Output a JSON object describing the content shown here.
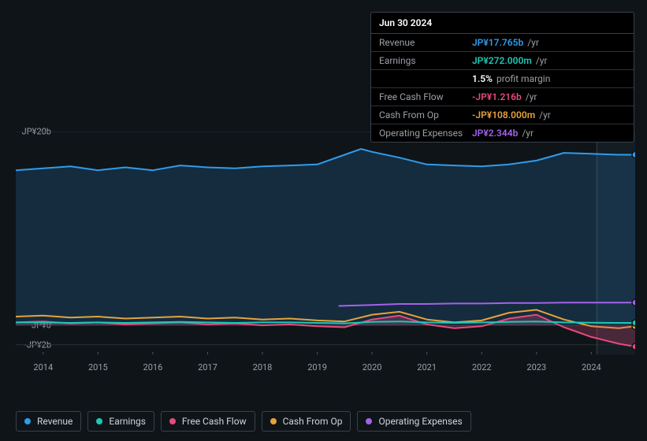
{
  "tooltip": {
    "date": "Jun 30 2024",
    "rows": [
      {
        "label": "Revenue",
        "value": "JP¥17.765b",
        "unit": "/yr",
        "color": "#2f9ceb"
      },
      {
        "label": "Earnings",
        "value": "JP¥272.000m",
        "unit": "/yr",
        "color": "#1fc7b6"
      },
      {
        "label": "",
        "value": "1.5%",
        "unit": "profit margin",
        "color": "#ffffff"
      },
      {
        "label": "Free Cash Flow",
        "value": "-JP¥1.216b",
        "unit": "/yr",
        "color": "#e84a7a"
      },
      {
        "label": "Cash From Op",
        "value": "-JP¥108.000m",
        "unit": "/yr",
        "color": "#e6a23c"
      },
      {
        "label": "Operating Expenses",
        "value": "JP¥2.344b",
        "unit": "/yr",
        "color": "#a362ea"
      }
    ]
  },
  "chart": {
    "type": "area-line",
    "background_color": "#0f1419",
    "grid_color": "#2a3038",
    "y_ticks": [
      {
        "v": 20,
        "label": "JP¥20b"
      },
      {
        "v": 0,
        "label": "JP¥0"
      },
      {
        "v": -2,
        "label": "-JP¥2b"
      }
    ],
    "x_years": [
      2014,
      2015,
      2016,
      2017,
      2018,
      2019,
      2020,
      2021,
      2022,
      2023,
      2024
    ],
    "x_min": 2013.5,
    "x_max": 2024.8,
    "y_min": -3,
    "y_max": 20,
    "vertical_marker_x": 2024.1,
    "series": [
      {
        "name": "Revenue",
        "color": "#2f9ceb",
        "fill": true,
        "fill_opacity": 0.18,
        "width": 2,
        "points": [
          [
            2013.5,
            16.0
          ],
          [
            2014,
            16.2
          ],
          [
            2014.5,
            16.4
          ],
          [
            2015,
            16.0
          ],
          [
            2015.5,
            16.3
          ],
          [
            2016,
            16.0
          ],
          [
            2016.5,
            16.5
          ],
          [
            2017,
            16.3
          ],
          [
            2017.5,
            16.2
          ],
          [
            2018,
            16.4
          ],
          [
            2018.5,
            16.5
          ],
          [
            2019,
            16.6
          ],
          [
            2019.5,
            17.6
          ],
          [
            2019.8,
            18.2
          ],
          [
            2020,
            17.9
          ],
          [
            2020.5,
            17.3
          ],
          [
            2021,
            16.6
          ],
          [
            2021.5,
            16.5
          ],
          [
            2022,
            16.4
          ],
          [
            2022.5,
            16.6
          ],
          [
            2023,
            17.0
          ],
          [
            2023.5,
            17.8
          ],
          [
            2024,
            17.7
          ],
          [
            2024.5,
            17.6
          ],
          [
            2024.8,
            17.6
          ]
        ]
      },
      {
        "name": "Operating Expenses",
        "color": "#a362ea",
        "fill": false,
        "width": 2,
        "points": [
          [
            2019.4,
            2.0
          ],
          [
            2020,
            2.1
          ],
          [
            2020.5,
            2.2
          ],
          [
            2021,
            2.2
          ],
          [
            2021.5,
            2.25
          ],
          [
            2022,
            2.25
          ],
          [
            2022.5,
            2.3
          ],
          [
            2023,
            2.3
          ],
          [
            2023.5,
            2.35
          ],
          [
            2024,
            2.34
          ],
          [
            2024.5,
            2.35
          ],
          [
            2024.8,
            2.35
          ]
        ]
      },
      {
        "name": "Cash From Op",
        "color": "#e6a23c",
        "fill": false,
        "width": 2,
        "points": [
          [
            2013.5,
            0.9
          ],
          [
            2014,
            1.0
          ],
          [
            2014.5,
            0.8
          ],
          [
            2015,
            0.9
          ],
          [
            2015.5,
            0.7
          ],
          [
            2016,
            0.8
          ],
          [
            2016.5,
            0.9
          ],
          [
            2017,
            0.7
          ],
          [
            2017.5,
            0.8
          ],
          [
            2018,
            0.6
          ],
          [
            2018.5,
            0.7
          ],
          [
            2019,
            0.5
          ],
          [
            2019.5,
            0.4
          ],
          [
            2020,
            1.1
          ],
          [
            2020.5,
            1.4
          ],
          [
            2021,
            0.6
          ],
          [
            2021.5,
            0.3
          ],
          [
            2022,
            0.5
          ],
          [
            2022.5,
            1.3
          ],
          [
            2023,
            1.6
          ],
          [
            2023.5,
            0.6
          ],
          [
            2024,
            -0.1
          ],
          [
            2024.5,
            -0.3
          ],
          [
            2024.8,
            -0.1
          ]
        ]
      },
      {
        "name": "Free Cash Flow",
        "color": "#e84a7a",
        "fill": true,
        "fill_opacity": 0.25,
        "width": 2,
        "points": [
          [
            2013.5,
            0.3
          ],
          [
            2014,
            0.4
          ],
          [
            2014.5,
            0.2
          ],
          [
            2015,
            0.3
          ],
          [
            2015.5,
            0.1
          ],
          [
            2016,
            0.2
          ],
          [
            2016.5,
            0.3
          ],
          [
            2017,
            0.1
          ],
          [
            2017.5,
            0.2
          ],
          [
            2018,
            0.0
          ],
          [
            2018.5,
            0.1
          ],
          [
            2019,
            -0.1
          ],
          [
            2019.5,
            -0.2
          ],
          [
            2020,
            0.6
          ],
          [
            2020.5,
            1.0
          ],
          [
            2021,
            0.1
          ],
          [
            2021.5,
            -0.3
          ],
          [
            2022,
            -0.1
          ],
          [
            2022.5,
            0.7
          ],
          [
            2023,
            1.1
          ],
          [
            2023.5,
            -0.2
          ],
          [
            2024,
            -1.2
          ],
          [
            2024.5,
            -1.9
          ],
          [
            2024.8,
            -2.2
          ]
        ]
      },
      {
        "name": "Earnings",
        "color": "#1fc7b6",
        "fill": false,
        "width": 2,
        "points": [
          [
            2013.5,
            0.3
          ],
          [
            2014,
            0.3
          ],
          [
            2014.5,
            0.25
          ],
          [
            2015,
            0.3
          ],
          [
            2015.5,
            0.25
          ],
          [
            2016,
            0.3
          ],
          [
            2016.5,
            0.35
          ],
          [
            2017,
            0.3
          ],
          [
            2017.5,
            0.25
          ],
          [
            2018,
            0.3
          ],
          [
            2018.5,
            0.3
          ],
          [
            2019,
            0.25
          ],
          [
            2019.5,
            0.2
          ],
          [
            2020,
            0.35
          ],
          [
            2020.5,
            0.4
          ],
          [
            2021,
            0.3
          ],
          [
            2021.5,
            0.25
          ],
          [
            2022,
            0.3
          ],
          [
            2022.5,
            0.35
          ],
          [
            2023,
            0.4
          ],
          [
            2023.5,
            0.3
          ],
          [
            2024,
            0.27
          ],
          [
            2024.5,
            0.25
          ],
          [
            2024.8,
            0.25
          ]
        ]
      }
    ],
    "end_markers": [
      {
        "x": 2024.8,
        "y": 17.6,
        "color": "#2f9ceb"
      },
      {
        "x": 2024.8,
        "y": 2.35,
        "color": "#a362ea"
      },
      {
        "x": 2024.8,
        "y": -0.1,
        "color": "#e6a23c"
      },
      {
        "x": 2024.8,
        "y": 0.25,
        "color": "#1fc7b6"
      },
      {
        "x": 2024.8,
        "y": -2.2,
        "color": "#e84a7a"
      }
    ]
  },
  "legend": [
    {
      "label": "Revenue",
      "color": "#2f9ceb"
    },
    {
      "label": "Earnings",
      "color": "#1fc7b6"
    },
    {
      "label": "Free Cash Flow",
      "color": "#e84a7a"
    },
    {
      "label": "Cash From Op",
      "color": "#e6a23c"
    },
    {
      "label": "Operating Expenses",
      "color": "#a362ea"
    }
  ]
}
